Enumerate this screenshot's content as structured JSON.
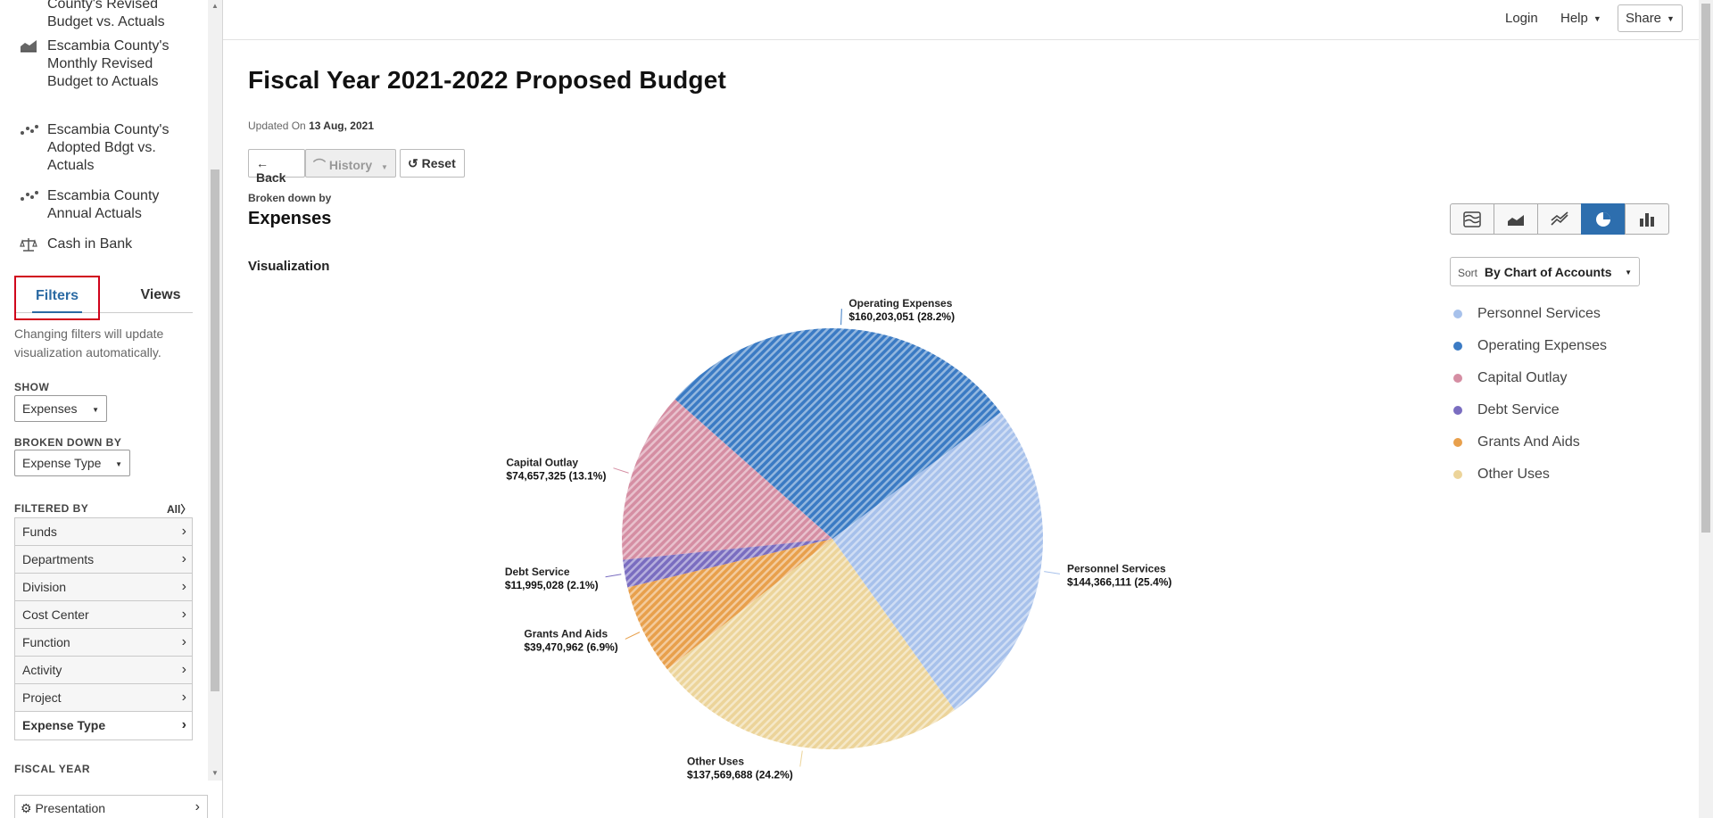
{
  "sidebar": {
    "nav_items": [
      {
        "label": "County's Revised Budget vs. Actuals",
        "icon": "bar-chart-icon"
      },
      {
        "label": "Escambia County's Monthly Revised Budget to Actuals",
        "icon": "area-chart-icon"
      },
      {
        "label": "Escambia County's Adopted Bdgt vs. Actuals",
        "icon": "scatter-dots-icon"
      },
      {
        "label": "Escambia County Annual Actuals",
        "icon": "scatter-dots-icon"
      },
      {
        "label": "Cash in Bank",
        "icon": "balance-scale-icon"
      }
    ],
    "tabs": {
      "filters": "Filters",
      "views": "Views"
    },
    "filters_description": "Changing filters will update visualization automatically.",
    "show_label": "SHOW",
    "show_value": "Expenses",
    "broken_down_label": "BROKEN DOWN BY",
    "broken_down_value": "Expense Type",
    "filtered_by_label": "FILTERED BY",
    "all_link": "All",
    "filters": [
      "Funds",
      "Departments",
      "Division",
      "Cost Center",
      "Function",
      "Activity",
      "Project",
      "Expense Type"
    ],
    "fiscal_year_label": "FISCAL YEAR",
    "presentation_label": "Presentation"
  },
  "topbar": {
    "login": "Login",
    "help": "Help",
    "share": "Share"
  },
  "main": {
    "title": "Fiscal Year 2021-2022 Proposed Budget",
    "updated_prefix": "Updated On",
    "updated_date": "13 Aug, 2021",
    "buttons": {
      "back": "Back",
      "history": "History",
      "reset": "Reset"
    },
    "broken_down_by_label": "Broken down by",
    "broken_down_by_value": "Expenses",
    "visualization_label": "Visualization",
    "sort_prefix": "Sort",
    "sort_value": "By Chart of Accounts",
    "chart_types": [
      "stacked-table-icon",
      "area-chart-icon",
      "line-chart-icon",
      "pie-chart-icon",
      "bar-chart-icon"
    ],
    "active_chart_type": "pie-chart-icon"
  },
  "chart_data": {
    "type": "pie",
    "slices": [
      {
        "name": "Personnel Services",
        "value": 144366111,
        "label": "$144,366,111 (25.4%)",
        "color": "#a7c1eb"
      },
      {
        "name": "Operating Expenses",
        "value": 160203051,
        "label": "$160,203,051 (28.2%)",
        "color": "#3b7bc4"
      },
      {
        "name": "Capital Outlay",
        "value": 74657325,
        "label": "$74,657,325 (13.1%)",
        "color": "#d58ea3"
      },
      {
        "name": "Debt Service",
        "value": 11995028,
        "label": "$11,995,028 (2.1%)",
        "color": "#7a6dc0"
      },
      {
        "name": "Grants And Aids",
        "value": 39470962,
        "label": "$39,470,962 (6.9%)",
        "color": "#e8a04c"
      },
      {
        "name": "Other Uses",
        "value": 137569688,
        "label": "$137,569,688 (24.2%)",
        "color": "#ecd49a"
      }
    ],
    "legend": [
      "Personnel Services",
      "Operating Expenses",
      "Capital Outlay",
      "Debt Service",
      "Grants And Aids",
      "Other Uses"
    ],
    "legend_position": "right"
  }
}
